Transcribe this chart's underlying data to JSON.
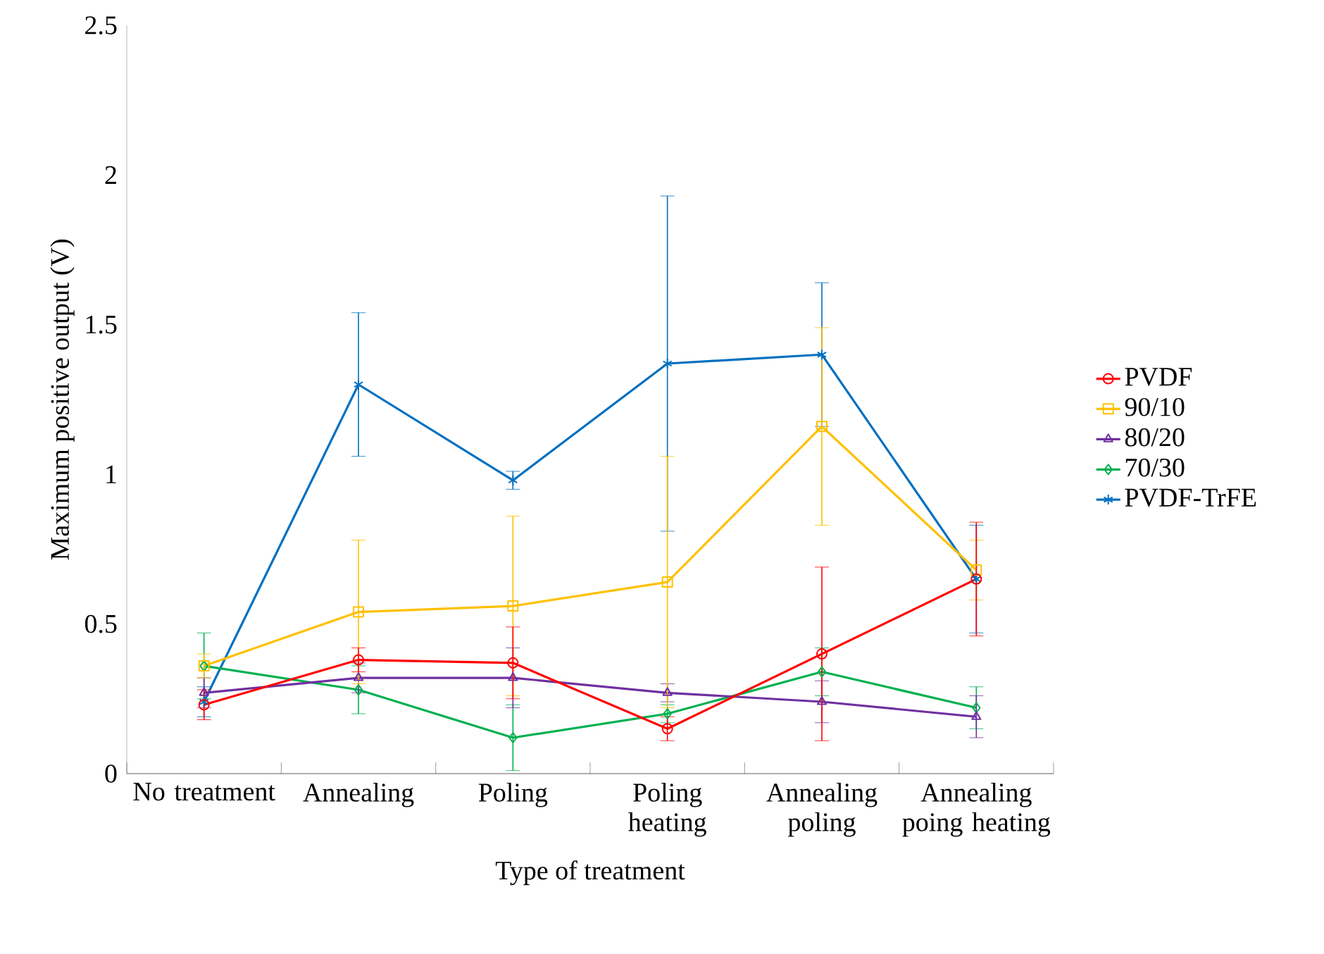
{
  "chart_data": {
    "type": "line",
    "xlabel": "Type of treatment",
    "ylabel": "Maximum positive output (V)",
    "categories": [
      "No treatment",
      "Annealing",
      "Poling",
      "Poling heating",
      "Annealing poling",
      "Annealing poing heating"
    ],
    "ylim": [
      0,
      2.5
    ],
    "yticks": [
      0,
      0.5,
      1,
      1.5,
      2,
      2.5
    ],
    "grid": false,
    "legend": "right",
    "line_style": "solid",
    "series": [
      {
        "name": "PVDF",
        "color": "#ff0000",
        "marker": "circle",
        "values": [
          0.23,
          0.38,
          0.37,
          0.15,
          0.4,
          0.65
        ],
        "errors": [
          0.05,
          0.04,
          0.12,
          0.04,
          0.29,
          0.19
        ]
      },
      {
        "name": "90/10",
        "color": "#ffc000",
        "marker": "square",
        "values": [
          0.36,
          0.54,
          0.56,
          0.64,
          1.16,
          0.68
        ],
        "errors": [
          0.04,
          0.24,
          0.3,
          0.42,
          0.33,
          0.1
        ]
      },
      {
        "name": "80/20",
        "color": "#7030a0",
        "marker": "triangle",
        "values": [
          0.27,
          0.32,
          0.32,
          0.27,
          0.24,
          0.19
        ],
        "errors": [
          0.05,
          0.05,
          0.1,
          0.03,
          0.07,
          0.07
        ]
      },
      {
        "name": "70/30",
        "color": "#00b050",
        "marker": "diamond",
        "values": [
          0.36,
          0.28,
          0.12,
          0.2,
          0.34,
          0.22
        ],
        "errors": [
          0.11,
          0.08,
          0.11,
          0.03,
          0.08,
          0.07
        ]
      },
      {
        "name": "PVDF-TrFE",
        "color": "#0070c0",
        "marker": "cross",
        "values": [
          0.24,
          1.3,
          0.98,
          1.37,
          1.4,
          0.65
        ],
        "errors": [
          0.05,
          0.24,
          0.03,
          0.56,
          0.24,
          0.18
        ]
      }
    ]
  }
}
